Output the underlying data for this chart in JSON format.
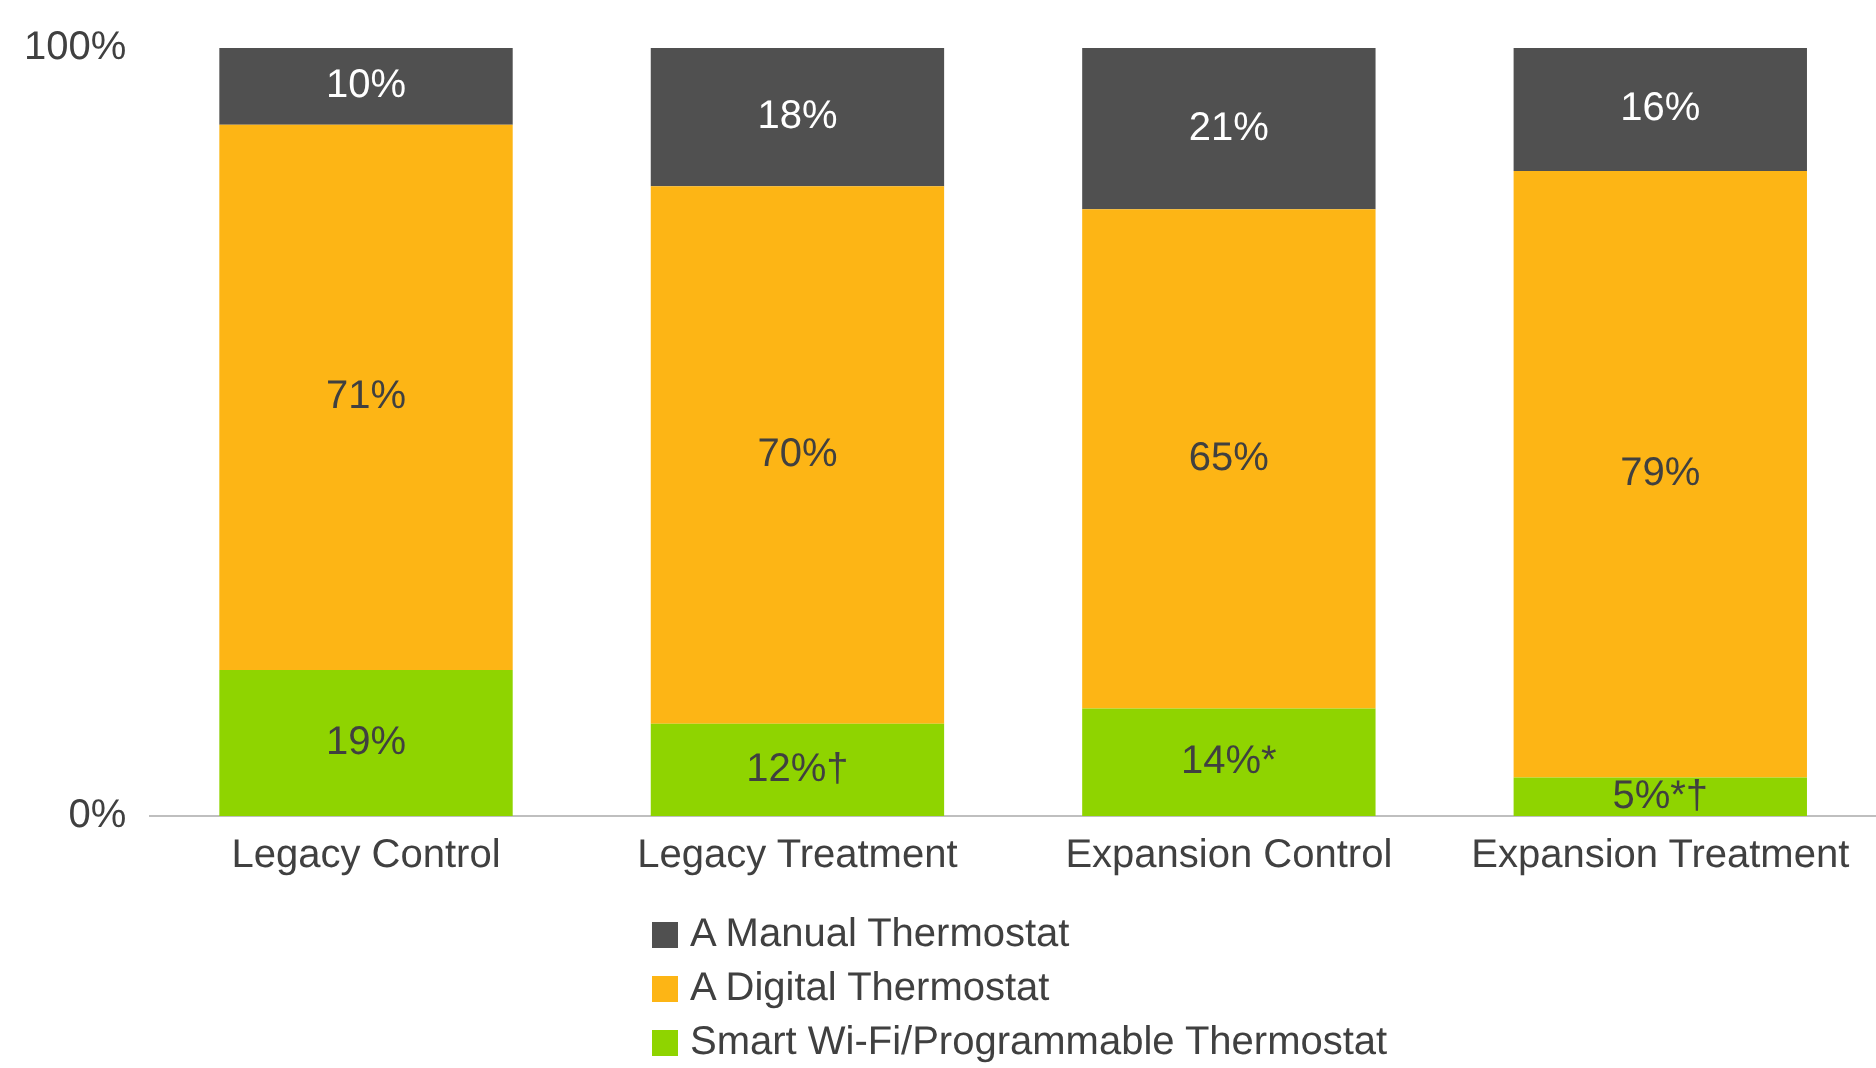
{
  "chart_data": {
    "type": "bar",
    "stacked": true,
    "categories": [
      "Legacy Control",
      "Legacy Treatment",
      "Expansion Control",
      "Expansion Treatment"
    ],
    "series": [
      {
        "name": "Smart Wi-Fi/Programmable Thermostat",
        "color": "#8fd400",
        "values": [
          19,
          12,
          14,
          5
        ],
        "value_labels": [
          "19%",
          "12%†",
          "14%*",
          "5%*†"
        ]
      },
      {
        "name": "A Digital Thermostat",
        "color": "#fdb515",
        "values": [
          71,
          70,
          65,
          79
        ],
        "value_labels": [
          "71%",
          "70%",
          "65%",
          "79%"
        ]
      },
      {
        "name": "A Manual Thermostat",
        "color": "#505050",
        "values": [
          10,
          18,
          21,
          16
        ],
        "value_labels": [
          "10%",
          "18%",
          "21%",
          "16%"
        ]
      }
    ],
    "ylim": [
      0,
      100
    ],
    "yticks": [
      {
        "value": 0,
        "label": "0%"
      },
      {
        "value": 100,
        "label": "100%"
      }
    ],
    "grid": false,
    "legend": "bottom"
  }
}
